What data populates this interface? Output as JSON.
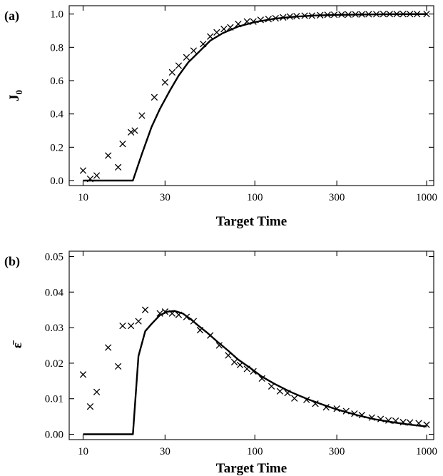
{
  "chart_data": [
    {
      "type": "line",
      "panel_label": "(a)",
      "xlabel": "Target Time",
      "ylabel": "J",
      "ylabel_subscript": "0",
      "x_scale": "log",
      "xlim": [
        8.3,
        1100
      ],
      "ylim": [
        -0.03,
        1.05
      ],
      "x_ticks": [
        10,
        30,
        100,
        300,
        1000
      ],
      "x_tick_labels": [
        "10",
        "30",
        "100",
        "300",
        "1000"
      ],
      "y_ticks": [
        0.0,
        0.2,
        0.4,
        0.6,
        0.8,
        1.0
      ],
      "y_tick_labels": [
        "0.0",
        "0.2",
        "0.4",
        "0.6",
        "0.8",
        "1.0"
      ],
      "grid": false,
      "series": [
        {
          "style": "line",
          "x": [
            10,
            19.5,
            22,
            25,
            28,
            32,
            36,
            41,
            47,
            55,
            65,
            80,
            100,
            130,
            170,
            220,
            300,
            400,
            600,
            1000
          ],
          "y": [
            0.0,
            0.0,
            0.16,
            0.32,
            0.43,
            0.54,
            0.63,
            0.71,
            0.77,
            0.84,
            0.885,
            0.925,
            0.952,
            0.972,
            0.984,
            0.991,
            0.995,
            0.997,
            0.999,
            1.0
          ]
        },
        {
          "style": "markers",
          "marker": "x",
          "x": [
            10,
            11,
            12,
            14,
            16,
            17,
            19,
            20,
            22,
            26,
            30,
            33,
            36,
            40,
            44,
            50,
            55,
            60,
            66,
            72,
            80,
            90,
            98,
            108,
            120,
            132,
            146,
            160,
            175,
            195,
            215,
            240,
            265,
            290,
            320,
            350,
            385,
            420,
            460,
            510,
            560,
            610,
            670,
            730,
            800,
            880,
            1000
          ],
          "y": [
            0.06,
            0.01,
            0.03,
            0.15,
            0.08,
            0.22,
            0.29,
            0.3,
            0.39,
            0.5,
            0.59,
            0.65,
            0.69,
            0.74,
            0.78,
            0.82,
            0.865,
            0.89,
            0.91,
            0.92,
            0.94,
            0.955,
            0.955,
            0.965,
            0.97,
            0.975,
            0.98,
            0.985,
            0.987,
            0.99,
            0.99,
            0.993,
            0.995,
            0.996,
            0.997,
            0.997,
            0.998,
            0.998,
            0.999,
            0.999,
            1.0,
            1.0,
            1.0,
            1.0,
            1.0,
            1.0,
            1.0
          ]
        }
      ]
    },
    {
      "type": "line",
      "panel_label": "(b)",
      "xlabel": "Target Time",
      "ylabel": "ε̄",
      "x_scale": "log",
      "xlim": [
        8.3,
        1100
      ],
      "ylim": [
        -0.0015,
        0.0515
      ],
      "x_ticks": [
        10,
        30,
        100,
        300,
        1000
      ],
      "x_tick_labels": [
        "10",
        "30",
        "100",
        "300",
        "1000"
      ],
      "y_ticks": [
        0.0,
        0.01,
        0.02,
        0.03,
        0.04,
        0.05
      ],
      "y_tick_labels": [
        "0.00",
        "0.01",
        "0.02",
        "0.03",
        "0.04",
        "0.05"
      ],
      "grid": false,
      "series": [
        {
          "style": "line",
          "x": [
            10,
            19.5,
            21,
            23,
            25,
            28,
            31,
            34,
            38,
            42,
            47,
            53,
            60,
            70,
            80,
            95,
            110,
            130,
            160,
            200,
            250,
            300,
            400,
            500,
            650,
            800,
            1000
          ],
          "y": [
            0.0,
            0.0,
            0.022,
            0.029,
            0.031,
            0.0335,
            0.0345,
            0.0347,
            0.034,
            0.0325,
            0.0305,
            0.0285,
            0.0262,
            0.0235,
            0.021,
            0.0185,
            0.0162,
            0.0142,
            0.012,
            0.01,
            0.0083,
            0.007,
            0.0053,
            0.0042,
            0.0033,
            0.0027,
            0.0022
          ]
        },
        {
          "style": "markers",
          "marker": "x",
          "x": [
            10,
            11,
            12,
            14,
            16,
            17,
            19,
            21,
            23,
            28,
            30,
            33,
            36,
            40,
            44,
            48,
            55,
            62,
            70,
            76,
            82,
            90,
            98,
            110,
            125,
            140,
            155,
            170,
            200,
            225,
            260,
            300,
            340,
            380,
            420,
            480,
            540,
            600,
            660,
            730,
            800,
            900,
            1000
          ],
          "y": [
            0.0168,
            0.0078,
            0.0119,
            0.0244,
            0.0191,
            0.0305,
            0.0305,
            0.0318,
            0.035,
            0.034,
            0.0345,
            0.034,
            0.0336,
            0.033,
            0.0318,
            0.0293,
            0.0278,
            0.025,
            0.0222,
            0.0203,
            0.0195,
            0.0184,
            0.0177,
            0.0157,
            0.0135,
            0.0121,
            0.0116,
            0.0101,
            0.0097,
            0.0086,
            0.0076,
            0.0072,
            0.0065,
            0.0058,
            0.0054,
            0.0047,
            0.0043,
            0.0039,
            0.0038,
            0.0034,
            0.0033,
            0.0031,
            0.0027
          ]
        }
      ]
    }
  ]
}
